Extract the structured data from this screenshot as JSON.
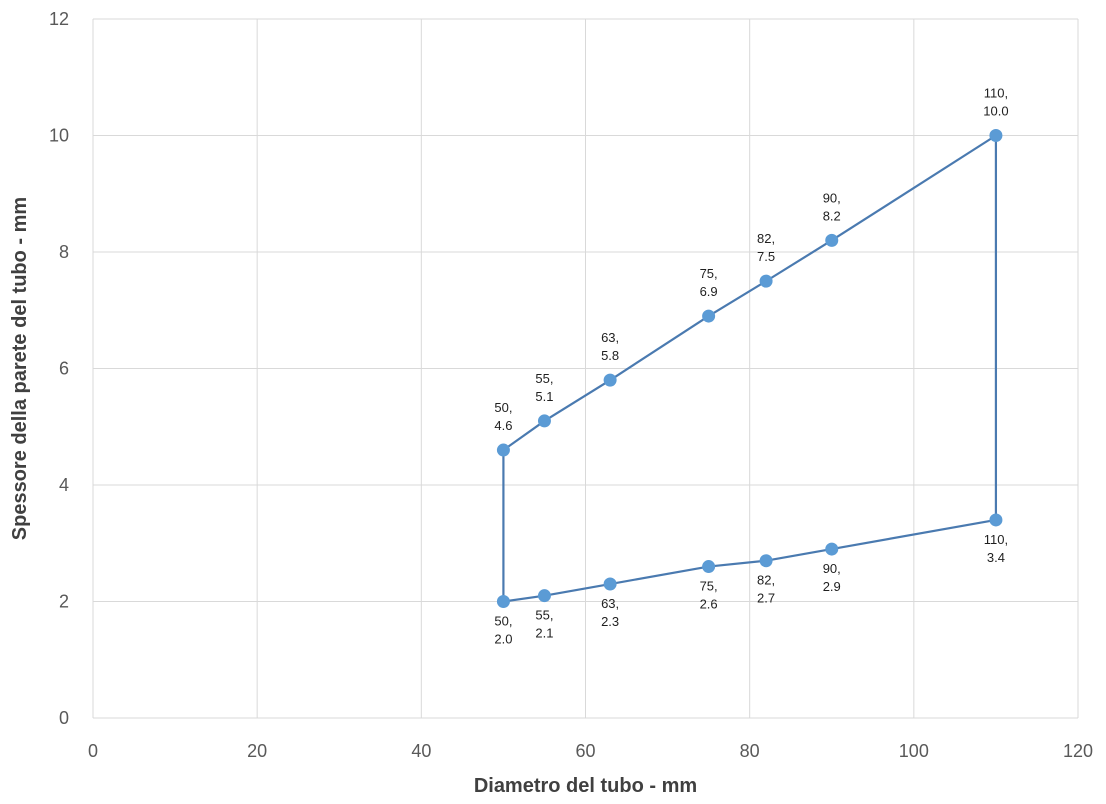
{
  "chart_data": {
    "type": "scatter",
    "xlabel": "Diametro del tubo - mm",
    "ylabel": "Spessore della parete del tubo - mm",
    "xlim": [
      0,
      120
    ],
    "ylim": [
      0,
      12
    ],
    "x_ticks": [
      "0",
      "20",
      "40",
      "60",
      "80",
      "100",
      "120"
    ],
    "y_ticks": [
      "0",
      "2",
      "4",
      "6",
      "8",
      "10",
      "12"
    ],
    "grid": true,
    "line_color": "#4a7ab0",
    "marker_color": "#5b9bd5",
    "series": [
      {
        "points": [
          {
            "x": 50,
            "y": 2.0,
            "label_top": "50,",
            "label_bottom": "2.0",
            "label_pos": "below"
          },
          {
            "x": 50,
            "y": 4.6,
            "label_top": "50,",
            "label_bottom": "4.6",
            "label_pos": "above"
          },
          {
            "x": 55,
            "y": 5.1,
            "label_top": "55,",
            "label_bottom": "5.1",
            "label_pos": "above"
          },
          {
            "x": 63,
            "y": 5.8,
            "label_top": "63,",
            "label_bottom": "5.8",
            "label_pos": "above"
          },
          {
            "x": 75,
            "y": 6.9,
            "label_top": "75,",
            "label_bottom": "6.9",
            "label_pos": "above"
          },
          {
            "x": 82,
            "y": 7.5,
            "label_top": "82,",
            "label_bottom": "7.5",
            "label_pos": "above"
          },
          {
            "x": 90,
            "y": 8.2,
            "label_top": "90,",
            "label_bottom": "8.2",
            "label_pos": "above"
          },
          {
            "x": 110,
            "y": 10.0,
            "label_top": "110,",
            "label_bottom": "10.0",
            "label_pos": "above"
          },
          {
            "x": 110,
            "y": 3.4,
            "label_top": "110,",
            "label_bottom": "3.4",
            "label_pos": "below"
          },
          {
            "x": 90,
            "y": 2.9,
            "label_top": "90,",
            "label_bottom": "2.9",
            "label_pos": "below"
          },
          {
            "x": 82,
            "y": 2.7,
            "label_top": "82,",
            "label_bottom": "2.7",
            "label_pos": "below"
          },
          {
            "x": 75,
            "y": 2.6,
            "label_top": "75,",
            "label_bottom": "2.6",
            "label_pos": "below"
          },
          {
            "x": 63,
            "y": 2.3,
            "label_top": "63,",
            "label_bottom": "2.3",
            "label_pos": "below"
          },
          {
            "x": 55,
            "y": 2.1,
            "label_top": "55,",
            "label_bottom": "2.1",
            "label_pos": "below"
          },
          {
            "x": 50,
            "y": 2.0,
            "label_top": "",
            "label_bottom": "",
            "label_pos": "none"
          }
        ]
      }
    ]
  }
}
